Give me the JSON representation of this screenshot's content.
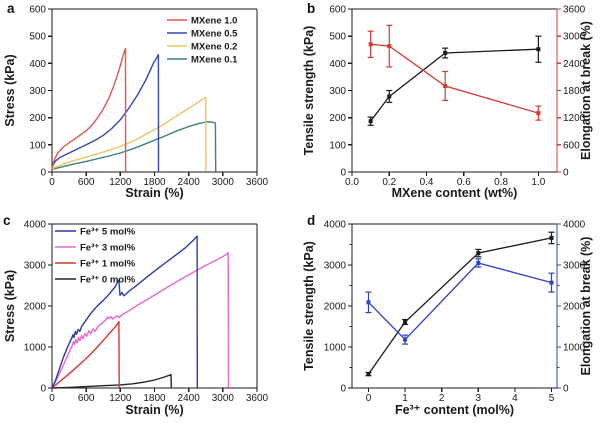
{
  "figure": {
    "background": "#ffffff"
  },
  "chart_data": [
    {
      "panel_label": "a",
      "type": "line",
      "title": "",
      "xlabel": "Strain (%)",
      "ylabel": "Stress (kPa)",
      "xlim": [
        0,
        3600
      ],
      "ylim": [
        0,
        600
      ],
      "xtick_vals": [
        0,
        600,
        1200,
        1800,
        2400,
        3000,
        3600
      ],
      "xtick_labels": [
        "0",
        "600",
        "1200",
        "1800",
        "2400",
        "3000",
        "3600"
      ],
      "ytick_vals": [
        0,
        100,
        200,
        300,
        400,
        500,
        600
      ],
      "ytick_labels": [
        "0",
        "100",
        "200",
        "300",
        "400",
        "500",
        "600"
      ],
      "legend_position": "top-right",
      "series": [
        {
          "name": "MXene 1.0",
          "color": "#e2574e",
          "points": [
            [
              0,
              15
            ],
            [
              40,
              45
            ],
            [
              100,
              70
            ],
            [
              200,
              92
            ],
            [
              300,
              108
            ],
            [
              400,
              122
            ],
            [
              500,
              137
            ],
            [
              600,
              152
            ],
            [
              700,
              172
            ],
            [
              800,
              200
            ],
            [
              900,
              232
            ],
            [
              1000,
              272
            ],
            [
              1100,
              325
            ],
            [
              1180,
              378
            ],
            [
              1250,
              430
            ],
            [
              1285,
              452
            ],
            [
              1290,
              455
            ],
            [
              1292,
              3
            ]
          ]
        },
        {
          "name": "MXene 0.5",
          "color": "#3747b5",
          "points": [
            [
              0,
              18
            ],
            [
              60,
              40
            ],
            [
              150,
              55
            ],
            [
              300,
              70
            ],
            [
              450,
              85
            ],
            [
              600,
              100
            ],
            [
              750,
              116
            ],
            [
              900,
              135
            ],
            [
              1050,
              160
            ],
            [
              1200,
              192
            ],
            [
              1350,
              235
            ],
            [
              1500,
              283
            ],
            [
              1650,
              340
            ],
            [
              1780,
              400
            ],
            [
              1860,
              428
            ],
            [
              1868,
              432
            ],
            [
              1870,
              3
            ]
          ]
        },
        {
          "name": "MXene 0.2",
          "color": "#eac65d",
          "points": [
            [
              0,
              12
            ],
            [
              150,
              25
            ],
            [
              300,
              36
            ],
            [
              450,
              46
            ],
            [
              600,
              55
            ],
            [
              800,
              67
            ],
            [
              1000,
              80
            ],
            [
              1200,
              94
            ],
            [
              1400,
              112
            ],
            [
              1600,
              133
            ],
            [
              1800,
              156
            ],
            [
              2000,
              180
            ],
            [
              2200,
              208
            ],
            [
              2400,
              234
            ],
            [
              2550,
              255
            ],
            [
              2670,
              270
            ],
            [
              2700,
              274
            ],
            [
              2703,
              3
            ]
          ]
        },
        {
          "name": "MXene 0.1",
          "color": "#3c837c",
          "points": [
            [
              0,
              10
            ],
            [
              200,
              20
            ],
            [
              400,
              30
            ],
            [
              600,
              39
            ],
            [
              800,
              49
            ],
            [
              1000,
              59
            ],
            [
              1200,
              70
            ],
            [
              1400,
              84
            ],
            [
              1600,
              100
            ],
            [
              1800,
              117
            ],
            [
              2000,
              134
            ],
            [
              2200,
              152
            ],
            [
              2400,
              167
            ],
            [
              2550,
              177
            ],
            [
              2700,
              184
            ],
            [
              2800,
              184
            ],
            [
              2870,
              180
            ],
            [
              2875,
              3
            ]
          ]
        }
      ]
    },
    {
      "panel_label": "b",
      "type": "dual_axis_points",
      "title": "",
      "xlabel": "MXene content (wt%)",
      "ylabel_left": "Tensile strength (kPa)",
      "ylabel_right": "Elongation at break (%)",
      "axis_color_left": "#1a1a1a",
      "axis_color_right": "#d6392f",
      "xlim": [
        0,
        1.1
      ],
      "ylim_left": [
        0,
        600
      ],
      "ylim_right": [
        0,
        3600
      ],
      "xtick_vals": [
        0,
        0.2,
        0.4,
        0.6,
        0.8,
        1.0
      ],
      "xtick_labels": [
        "0.0",
        "0.2",
        "0.4",
        "0.6",
        "0.8",
        "1.0"
      ],
      "ytick_vals_left": [
        0,
        100,
        200,
        300,
        400,
        500,
        600
      ],
      "ytick_labels_left": [
        "0",
        "100",
        "200",
        "300",
        "400",
        "500",
        "600"
      ],
      "ytick_vals_right": [
        0,
        600,
        1200,
        1800,
        2400,
        3000,
        3600
      ],
      "ytick_labels_right": [
        "0",
        "600",
        "1200",
        "1800",
        "2400",
        "3000",
        "3600"
      ],
      "series": [
        {
          "name": "Tensile strength",
          "axis": "left",
          "color": "#1a1a1a",
          "points_xye": [
            [
              0.1,
              187,
              15
            ],
            [
              0.2,
              278,
              22
            ],
            [
              0.5,
              438,
              18
            ],
            [
              1.0,
              452,
              48
            ]
          ]
        },
        {
          "name": "Elongation at break",
          "axis": "right",
          "color": "#d6392f",
          "points_xye": [
            [
              0.1,
              2820,
              290
            ],
            [
              0.2,
              2780,
              460
            ],
            [
              0.5,
              1900,
              320
            ],
            [
              1.0,
              1300,
              155
            ]
          ]
        }
      ]
    },
    {
      "panel_label": "c",
      "type": "line",
      "title": "",
      "xlabel": "Strain (%)",
      "ylabel": "Stress (kPa)",
      "xlim": [
        0,
        3600
      ],
      "ylim": [
        0,
        4000
      ],
      "xtick_vals": [
        0,
        600,
        1200,
        1800,
        2400,
        3000,
        3600
      ],
      "xtick_labels": [
        "0",
        "600",
        "1200",
        "1800",
        "2400",
        "3000",
        "3600"
      ],
      "ytick_vals": [
        0,
        1000,
        2000,
        3000,
        4000
      ],
      "ytick_labels": [
        "0",
        "1000",
        "2000",
        "3000",
        "4000"
      ],
      "legend_position": "top-left",
      "series": [
        {
          "name": "Fe³⁺ 5 mol%",
          "color": "#2c3aac",
          "points": [
            [
              0,
              0
            ],
            [
              60,
              180
            ],
            [
              120,
              420
            ],
            [
              200,
              750
            ],
            [
              280,
              1020
            ],
            [
              340,
              1200
            ],
            [
              370,
              1300
            ],
            [
              385,
              1230
            ],
            [
              410,
              1380
            ],
            [
              430,
              1310
            ],
            [
              460,
              1430
            ],
            [
              490,
              1380
            ],
            [
              520,
              1500
            ],
            [
              560,
              1580
            ],
            [
              620,
              1700
            ],
            [
              700,
              1850
            ],
            [
              800,
              2010
            ],
            [
              900,
              2140
            ],
            [
              1000,
              2280
            ],
            [
              1100,
              2450
            ],
            [
              1160,
              2600
            ],
            [
              1175,
              2630
            ],
            [
              1195,
              2260
            ],
            [
              1230,
              2330
            ],
            [
              1260,
              2250
            ],
            [
              1300,
              2290
            ],
            [
              1360,
              2370
            ],
            [
              1450,
              2460
            ],
            [
              1600,
              2630
            ],
            [
              1800,
              2850
            ],
            [
              2000,
              3060
            ],
            [
              2200,
              3270
            ],
            [
              2350,
              3430
            ],
            [
              2480,
              3600
            ],
            [
              2540,
              3690
            ],
            [
              2548,
              3700
            ],
            [
              2552,
              5
            ]
          ]
        },
        {
          "name": "Fe³⁺ 3 mol%",
          "color": "#e566d4",
          "points": [
            [
              0,
              0
            ],
            [
              60,
              150
            ],
            [
              130,
              350
            ],
            [
              200,
              560
            ],
            [
              260,
              750
            ],
            [
              310,
              900
            ],
            [
              350,
              1020
            ],
            [
              380,
              1130
            ],
            [
              395,
              1060
            ],
            [
              420,
              1180
            ],
            [
              440,
              1100
            ],
            [
              470,
              1230
            ],
            [
              490,
              1150
            ],
            [
              520,
              1280
            ],
            [
              545,
              1200
            ],
            [
              580,
              1330
            ],
            [
              610,
              1260
            ],
            [
              650,
              1400
            ],
            [
              680,
              1320
            ],
            [
              720,
              1440
            ],
            [
              760,
              1380
            ],
            [
              800,
              1490
            ],
            [
              850,
              1550
            ],
            [
              900,
              1600
            ],
            [
              950,
              1670
            ],
            [
              980,
              1740
            ],
            [
              1000,
              1690
            ],
            [
              1040,
              1740
            ],
            [
              1070,
              1680
            ],
            [
              1110,
              1730
            ],
            [
              1140,
              1760
            ],
            [
              1180,
              1720
            ],
            [
              1220,
              1780
            ],
            [
              1300,
              1840
            ],
            [
              1400,
              1930
            ],
            [
              1550,
              2060
            ],
            [
              1700,
              2180
            ],
            [
              1900,
              2350
            ],
            [
              2100,
              2520
            ],
            [
              2300,
              2680
            ],
            [
              2500,
              2840
            ],
            [
              2700,
              2990
            ],
            [
              2900,
              3130
            ],
            [
              3050,
              3250
            ],
            [
              3090,
              3290
            ],
            [
              3095,
              3300
            ],
            [
              3100,
              5
            ]
          ]
        },
        {
          "name": "Fe³⁺ 1 mol%",
          "color": "#d6392f",
          "points": [
            [
              0,
              0
            ],
            [
              150,
              170
            ],
            [
              300,
              350
            ],
            [
              450,
              530
            ],
            [
              600,
              720
            ],
            [
              750,
              930
            ],
            [
              900,
              1160
            ],
            [
              1000,
              1320
            ],
            [
              1100,
              1470
            ],
            [
              1160,
              1580
            ],
            [
              1175,
              1620
            ],
            [
              1180,
              5
            ]
          ]
        },
        {
          "name": "Fe³⁺ 0 mol%",
          "color": "#262626",
          "points": [
            [
              0,
              0
            ],
            [
              300,
              15
            ],
            [
              600,
              35
            ],
            [
              900,
              55
            ],
            [
              1200,
              75
            ],
            [
              1400,
              100
            ],
            [
              1600,
              140
            ],
            [
              1800,
              195
            ],
            [
              1950,
              255
            ],
            [
              2060,
              310
            ],
            [
              2090,
              325
            ],
            [
              2095,
              5
            ]
          ]
        }
      ]
    },
    {
      "panel_label": "d",
      "type": "dual_axis_points",
      "title": "",
      "xlabel": "Fe³⁺ content (mol%)",
      "ylabel_left": "Tensile strength (kPa)",
      "ylabel_right": "Elongation at break (%)",
      "axis_color_left": "#1a1a1a",
      "axis_color_right": "#2c43c8",
      "xlim": [
        -0.45,
        5.15
      ],
      "ylim_left": [
        0,
        4000
      ],
      "ylim_right": [
        0,
        4000
      ],
      "xtick_vals": [
        0,
        1,
        2,
        3,
        4,
        5
      ],
      "xtick_labels": [
        "0",
        "1",
        "2",
        "3",
        "4",
        "5"
      ],
      "ytick_vals_left": [
        0,
        1000,
        2000,
        3000,
        4000
      ],
      "ytick_labels_left": [
        "0",
        "1000",
        "2000",
        "3000",
        "4000"
      ],
      "ytick_vals_right": [
        0,
        1000,
        2000,
        3000,
        4000
      ],
      "ytick_labels_right": [
        "0",
        "1000",
        "2000",
        "3000",
        "4000"
      ],
      "minor_ytick_step": 500,
      "series": [
        {
          "name": "Tensile strength",
          "axis": "left",
          "color": "#1a1a1a",
          "points_xye": [
            [
              0,
              340,
              40
            ],
            [
              1,
              1610,
              60
            ],
            [
              3,
              3290,
              90
            ],
            [
              5,
              3660,
              140
            ]
          ]
        },
        {
          "name": "Elongation at break",
          "axis": "right",
          "color": "#2c43c8",
          "points_xye": [
            [
              0,
              2090,
              250
            ],
            [
              1,
              1180,
              110
            ],
            [
              3,
              3050,
              100
            ],
            [
              5,
              2570,
              230
            ]
          ]
        }
      ]
    }
  ]
}
